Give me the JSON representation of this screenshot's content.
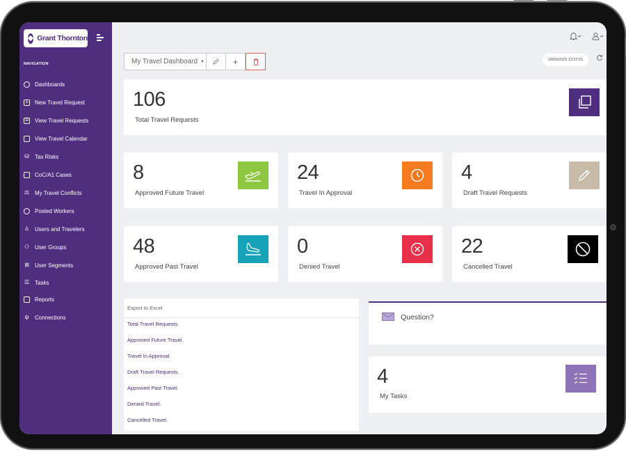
{
  "app": {
    "logo_text": "Grant Thornton",
    "brand_color": "#4f2d7f"
  },
  "sidebar": {
    "section_title": "NAVIGATION",
    "items": [
      {
        "label": "Dashboards",
        "icon": "dashboard-gauge-icon"
      },
      {
        "label": "New Travel Request",
        "icon": "plus-square-icon"
      },
      {
        "label": "View Travel Requests",
        "icon": "list-square-icon"
      },
      {
        "label": "View Travel Calendar",
        "icon": "calendar-icon"
      },
      {
        "label": "Tax Risks",
        "icon": "coins-icon"
      },
      {
        "label": "CoC/A1 Cases",
        "icon": "document-icon"
      },
      {
        "label": "My Travel Conflicts",
        "icon": "scale-icon"
      },
      {
        "label": "Posted Workers",
        "icon": "worker-icon"
      },
      {
        "label": "Users and Travelers",
        "icon": "user-icon"
      },
      {
        "label": "User Groups",
        "icon": "group-icon"
      },
      {
        "label": "User Segments",
        "icon": "segments-icon"
      },
      {
        "label": "Tasks",
        "icon": "checklist-icon"
      },
      {
        "label": "Reports",
        "icon": "file-icon"
      },
      {
        "label": "Connections",
        "icon": "plug-icon"
      }
    ]
  },
  "toolbar": {
    "dashboard_select": "My Travel Dashboard",
    "edit_icon": "pencil-icon",
    "add_icon": "plus-icon",
    "delete_icon": "trash-icon",
    "timestamp": "18/09/2023 13:52:51",
    "refresh_icon": "refresh-icon"
  },
  "header_icons": {
    "notifications": "bell-icon",
    "account": "user-icon"
  },
  "stats": {
    "total": {
      "value": "106",
      "label": "Total Travel Requests",
      "color": "#4f2d7f"
    },
    "approved_future": {
      "value": "8",
      "label": "Approved Future Travel",
      "color": "#8dc63f"
    },
    "in_approval": {
      "value": "24",
      "label": "Travel In Approval",
      "color": "#f47b20"
    },
    "draft": {
      "value": "4",
      "label": "Draft Travel Requests",
      "color": "#c7bba8"
    },
    "approved_past": {
      "value": "48",
      "label": "Approved Past Travel",
      "color": "#16a2b8"
    },
    "denied": {
      "value": "0",
      "label": "Denied Travel",
      "color": "#e8304a"
    },
    "cancelled": {
      "value": "22",
      "label": "Cancelled Travel",
      "color": "#000000"
    }
  },
  "export": {
    "title": "Export to Excel",
    "links": [
      "Total Travel Requests.",
      "Approved Future Travel.",
      "Travel In Approval.",
      "Draft Travel Requests.",
      "Approved Past Travel.",
      "Denied Travel.",
      "Cancelled Travel."
    ]
  },
  "question": {
    "label": "Question?"
  },
  "tasks": {
    "value": "4",
    "label": "My Tasks",
    "color": "#8f73b8"
  }
}
